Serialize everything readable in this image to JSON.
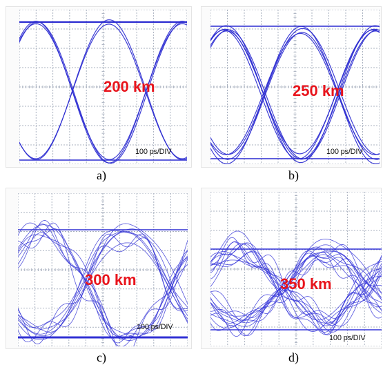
{
  "panels": [
    {
      "id": "a",
      "distance": "200 km",
      "scale": "100 ps/DIV",
      "caption": "a)",
      "trace_color": "#2a2ad0",
      "spread": 1,
      "traces": 5
    },
    {
      "id": "b",
      "distance": "250 km",
      "scale": "100 ps/DIV",
      "caption": "b)",
      "trace_color": "#2a2ad0",
      "spread": 2,
      "traces": 9
    },
    {
      "id": "c",
      "distance": "300 km",
      "scale": "100 ps/DIV",
      "caption": "c)",
      "trace_color": "#3030d4",
      "spread": 3,
      "traces": 16
    },
    {
      "id": "d",
      "distance": "350 km",
      "scale": "100 ps/DIV",
      "caption": "d)",
      "trace_color": "#3232d8",
      "spread": 4,
      "traces": 24
    }
  ],
  "colors": {
    "distance_label": "#e8141c",
    "grid": "#a9b1bf",
    "screen": "#ffffff"
  }
}
